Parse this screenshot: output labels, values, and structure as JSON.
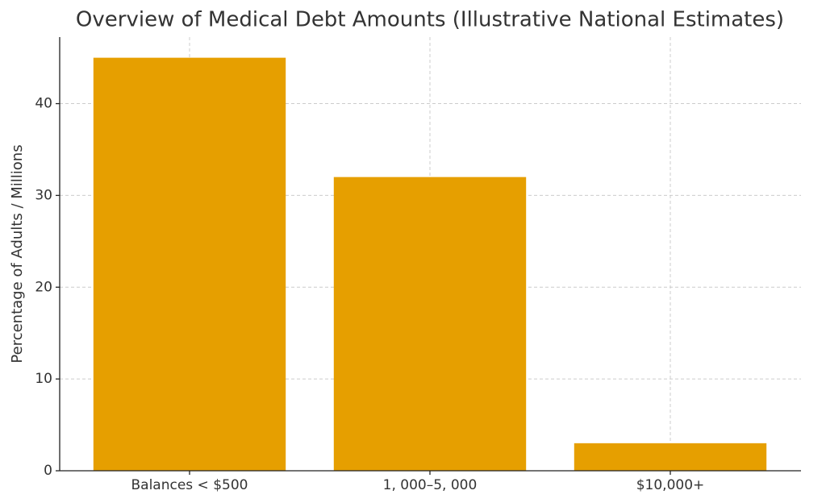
{
  "chart_data": {
    "type": "bar",
    "title": "Overview of Medical Debt Amounts (Illustrative National Estimates)",
    "y_label": "Percentage of Adults / Millions",
    "categories": [
      "Balances < $500",
      "1, 000–5, 000",
      "$10,000+"
    ],
    "values": [
      45,
      32,
      3
    ],
    "color": "#e69f00",
    "ylim": [
      0,
      47.25
    ],
    "yticks": [
      0,
      10,
      20,
      30,
      40
    ],
    "grid": true
  }
}
